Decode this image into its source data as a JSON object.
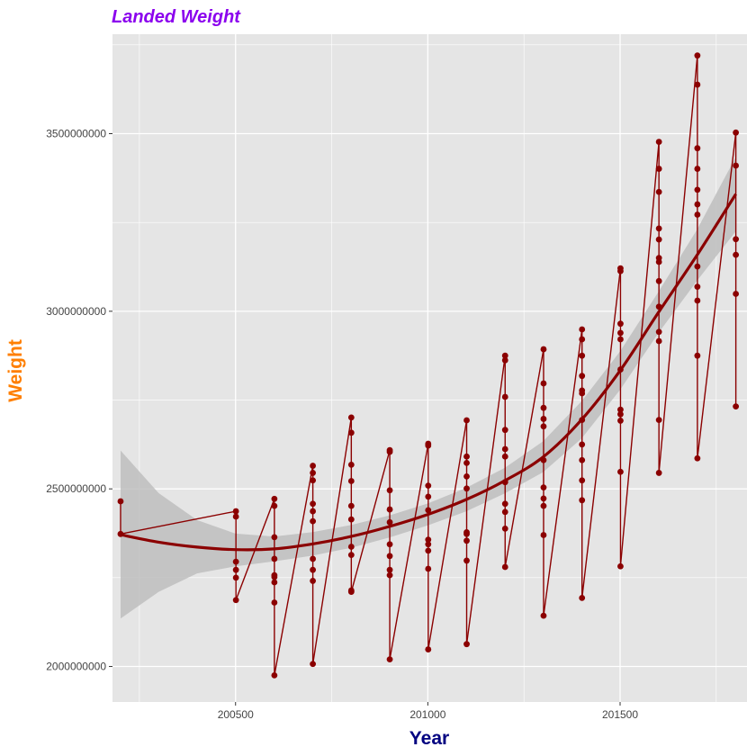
{
  "chart_data": {
    "type": "line",
    "title": "Landed Weight",
    "xlabel": "Year",
    "ylabel": "Weight",
    "xlim": [
      200180,
      201830
    ],
    "ylim": [
      1900000000,
      3780000000
    ],
    "x_ticks": [
      200500,
      201000,
      201500
    ],
    "x_tick_labels": [
      "200500",
      "201000",
      "201500"
    ],
    "y_ticks": [
      2000000000,
      2500000000,
      3000000000,
      3500000000
    ],
    "y_tick_labels": [
      "2000000000",
      "2500000000",
      "3000000000",
      "3500000000"
    ],
    "grid": true,
    "legend": "none",
    "colors": {
      "title": "#8B00EE",
      "xlabel": "#000080",
      "ylabel": "#FF7F00",
      "series": "#8B0000",
      "smooth": "#8B0000",
      "ribbon": "#BEBEBE",
      "panel": "#E5E5E5",
      "grid": "#FFFFFF"
    },
    "points": [
      {
        "x": 200201,
        "y": 2465000000
      },
      {
        "x": 200201,
        "y": 2373000000
      },
      {
        "x": 200501,
        "y": 2437000000
      },
      {
        "x": 200501,
        "y": 2422000000
      },
      {
        "x": 200501,
        "y": 2295000000
      },
      {
        "x": 200501,
        "y": 2272000000
      },
      {
        "x": 200501,
        "y": 2250000000
      },
      {
        "x": 200501,
        "y": 2187000000
      },
      {
        "x": 200601,
        "y": 2472000000
      },
      {
        "x": 200601,
        "y": 2452000000
      },
      {
        "x": 200601,
        "y": 2364000000
      },
      {
        "x": 200601,
        "y": 2303000000
      },
      {
        "x": 200601,
        "y": 2257000000
      },
      {
        "x": 200601,
        "y": 2252000000
      },
      {
        "x": 200601,
        "y": 2237000000
      },
      {
        "x": 200601,
        "y": 2180000000
      },
      {
        "x": 200601,
        "y": 1975000000
      },
      {
        "x": 200701,
        "y": 2565000000
      },
      {
        "x": 200701,
        "y": 2545000000
      },
      {
        "x": 200701,
        "y": 2524000000
      },
      {
        "x": 200701,
        "y": 2458000000
      },
      {
        "x": 200701,
        "y": 2437000000
      },
      {
        "x": 200701,
        "y": 2409000000
      },
      {
        "x": 200701,
        "y": 2303000000
      },
      {
        "x": 200701,
        "y": 2272000000
      },
      {
        "x": 200701,
        "y": 2241000000
      },
      {
        "x": 200701,
        "y": 2007000000
      },
      {
        "x": 200801,
        "y": 2701000000
      },
      {
        "x": 200801,
        "y": 2658000000
      },
      {
        "x": 200801,
        "y": 2568000000
      },
      {
        "x": 200801,
        "y": 2522000000
      },
      {
        "x": 200801,
        "y": 2452000000
      },
      {
        "x": 200801,
        "y": 2414000000
      },
      {
        "x": 200801,
        "y": 2337000000
      },
      {
        "x": 200801,
        "y": 2314000000
      },
      {
        "x": 200801,
        "y": 2214000000
      },
      {
        "x": 200801,
        "y": 2210000000
      },
      {
        "x": 200901,
        "y": 2609000000
      },
      {
        "x": 200901,
        "y": 2604000000
      },
      {
        "x": 200901,
        "y": 2496000000
      },
      {
        "x": 200901,
        "y": 2442000000
      },
      {
        "x": 200901,
        "y": 2406000000
      },
      {
        "x": 200901,
        "y": 2344000000
      },
      {
        "x": 200901,
        "y": 2311000000
      },
      {
        "x": 200901,
        "y": 2272000000
      },
      {
        "x": 200901,
        "y": 2257000000
      },
      {
        "x": 200901,
        "y": 2020000000
      },
      {
        "x": 201001,
        "y": 2627000000
      },
      {
        "x": 201001,
        "y": 2622000000
      },
      {
        "x": 201001,
        "y": 2509000000
      },
      {
        "x": 201001,
        "y": 2478000000
      },
      {
        "x": 201001,
        "y": 2440000000
      },
      {
        "x": 201001,
        "y": 2357000000
      },
      {
        "x": 201001,
        "y": 2344000000
      },
      {
        "x": 201001,
        "y": 2326000000
      },
      {
        "x": 201001,
        "y": 2275000000
      },
      {
        "x": 201001,
        "y": 2048000000
      },
      {
        "x": 201101,
        "y": 2693000000
      },
      {
        "x": 201101,
        "y": 2591000000
      },
      {
        "x": 201101,
        "y": 2573000000
      },
      {
        "x": 201101,
        "y": 2535000000
      },
      {
        "x": 201101,
        "y": 2501000000
      },
      {
        "x": 201101,
        "y": 2378000000
      },
      {
        "x": 201101,
        "y": 2373000000
      },
      {
        "x": 201101,
        "y": 2354000000
      },
      {
        "x": 201101,
        "y": 2298000000
      },
      {
        "x": 201101,
        "y": 2063000000
      },
      {
        "x": 201201,
        "y": 2875000000
      },
      {
        "x": 201201,
        "y": 2862000000
      },
      {
        "x": 201201,
        "y": 2759000000
      },
      {
        "x": 201201,
        "y": 2666000000
      },
      {
        "x": 201201,
        "y": 2612000000
      },
      {
        "x": 201201,
        "y": 2591000000
      },
      {
        "x": 201201,
        "y": 2519000000
      },
      {
        "x": 201201,
        "y": 2458000000
      },
      {
        "x": 201201,
        "y": 2435000000
      },
      {
        "x": 201201,
        "y": 2388000000
      },
      {
        "x": 201201,
        "y": 2280000000
      },
      {
        "x": 201301,
        "y": 2893000000
      },
      {
        "x": 201301,
        "y": 2797000000
      },
      {
        "x": 201301,
        "y": 2728000000
      },
      {
        "x": 201301,
        "y": 2697000000
      },
      {
        "x": 201301,
        "y": 2676000000
      },
      {
        "x": 201301,
        "y": 2581000000
      },
      {
        "x": 201301,
        "y": 2504000000
      },
      {
        "x": 201301,
        "y": 2473000000
      },
      {
        "x": 201301,
        "y": 2452000000
      },
      {
        "x": 201301,
        "y": 2370000000
      },
      {
        "x": 201301,
        "y": 2143000000
      },
      {
        "x": 201401,
        "y": 2949000000
      },
      {
        "x": 201401,
        "y": 2921000000
      },
      {
        "x": 201401,
        "y": 2875000000
      },
      {
        "x": 201401,
        "y": 2818000000
      },
      {
        "x": 201401,
        "y": 2777000000
      },
      {
        "x": 201401,
        "y": 2769000000
      },
      {
        "x": 201401,
        "y": 2694000000
      },
      {
        "x": 201401,
        "y": 2625000000
      },
      {
        "x": 201401,
        "y": 2581000000
      },
      {
        "x": 201401,
        "y": 2524000000
      },
      {
        "x": 201401,
        "y": 2468000000
      },
      {
        "x": 201401,
        "y": 2193000000
      },
      {
        "x": 201501,
        "y": 3121000000
      },
      {
        "x": 201501,
        "y": 3113000000
      },
      {
        "x": 201501,
        "y": 2965000000
      },
      {
        "x": 201501,
        "y": 2939000000
      },
      {
        "x": 201501,
        "y": 2921000000
      },
      {
        "x": 201501,
        "y": 2836000000
      },
      {
        "x": 201501,
        "y": 2723000000
      },
      {
        "x": 201501,
        "y": 2710000000
      },
      {
        "x": 201501,
        "y": 2692000000
      },
      {
        "x": 201501,
        "y": 2548000000
      },
      {
        "x": 201501,
        "y": 2282000000
      },
      {
        "x": 201601,
        "y": 3477000000
      },
      {
        "x": 201601,
        "y": 3401000000
      },
      {
        "x": 201601,
        "y": 3336000000
      },
      {
        "x": 201601,
        "y": 3233000000
      },
      {
        "x": 201601,
        "y": 3202000000
      },
      {
        "x": 201601,
        "y": 3150000000
      },
      {
        "x": 201601,
        "y": 3139000000
      },
      {
        "x": 201601,
        "y": 3085000000
      },
      {
        "x": 201601,
        "y": 3013000000
      },
      {
        "x": 201601,
        "y": 2942000000
      },
      {
        "x": 201601,
        "y": 2916000000
      },
      {
        "x": 201601,
        "y": 2694000000
      },
      {
        "x": 201601,
        "y": 2545000000
      },
      {
        "x": 201701,
        "y": 3720000000
      },
      {
        "x": 201701,
        "y": 3638000000
      },
      {
        "x": 201701,
        "y": 3459000000
      },
      {
        "x": 201701,
        "y": 3401000000
      },
      {
        "x": 201701,
        "y": 3342000000
      },
      {
        "x": 201701,
        "y": 3301000000
      },
      {
        "x": 201701,
        "y": 3272000000
      },
      {
        "x": 201701,
        "y": 3126000000
      },
      {
        "x": 201701,
        "y": 3069000000
      },
      {
        "x": 201701,
        "y": 3030000000
      },
      {
        "x": 201701,
        "y": 2875000000
      },
      {
        "x": 201701,
        "y": 2586000000
      },
      {
        "x": 201801,
        "y": 3503000000
      },
      {
        "x": 201801,
        "y": 3410000000
      },
      {
        "x": 201801,
        "y": 3203000000
      },
      {
        "x": 201801,
        "y": 3159000000
      },
      {
        "x": 201801,
        "y": 3049000000
      },
      {
        "x": 201801,
        "y": 2732000000
      }
    ],
    "smooth": {
      "x": [
        200201,
        200300,
        200400,
        200500,
        200600,
        200700,
        200800,
        200900,
        201000,
        201100,
        201200,
        201300,
        201400,
        201500,
        201600,
        201700,
        201801
      ],
      "y": [
        2371000000,
        2350000000,
        2336000000,
        2329000000,
        2331000000,
        2345000000,
        2366000000,
        2394000000,
        2428000000,
        2470000000,
        2523000000,
        2590000000,
        2695000000,
        2833000000,
        2997000000,
        3158000000,
        3330000000
      ],
      "lower": [
        2135000000,
        2210000000,
        2262000000,
        2282000000,
        2296000000,
        2312000000,
        2334000000,
        2363000000,
        2397000000,
        2437000000,
        2487000000,
        2547000000,
        2642000000,
        2779000000,
        2939000000,
        3086000000,
        3225000000
      ],
      "upper": [
        2608000000,
        2488000000,
        2412000000,
        2374000000,
        2366000000,
        2378000000,
        2398000000,
        2425000000,
        2459000000,
        2503000000,
        2559000000,
        2634000000,
        2747000000,
        2887000000,
        3055000000,
        3230000000,
        3435000000
      ]
    }
  }
}
